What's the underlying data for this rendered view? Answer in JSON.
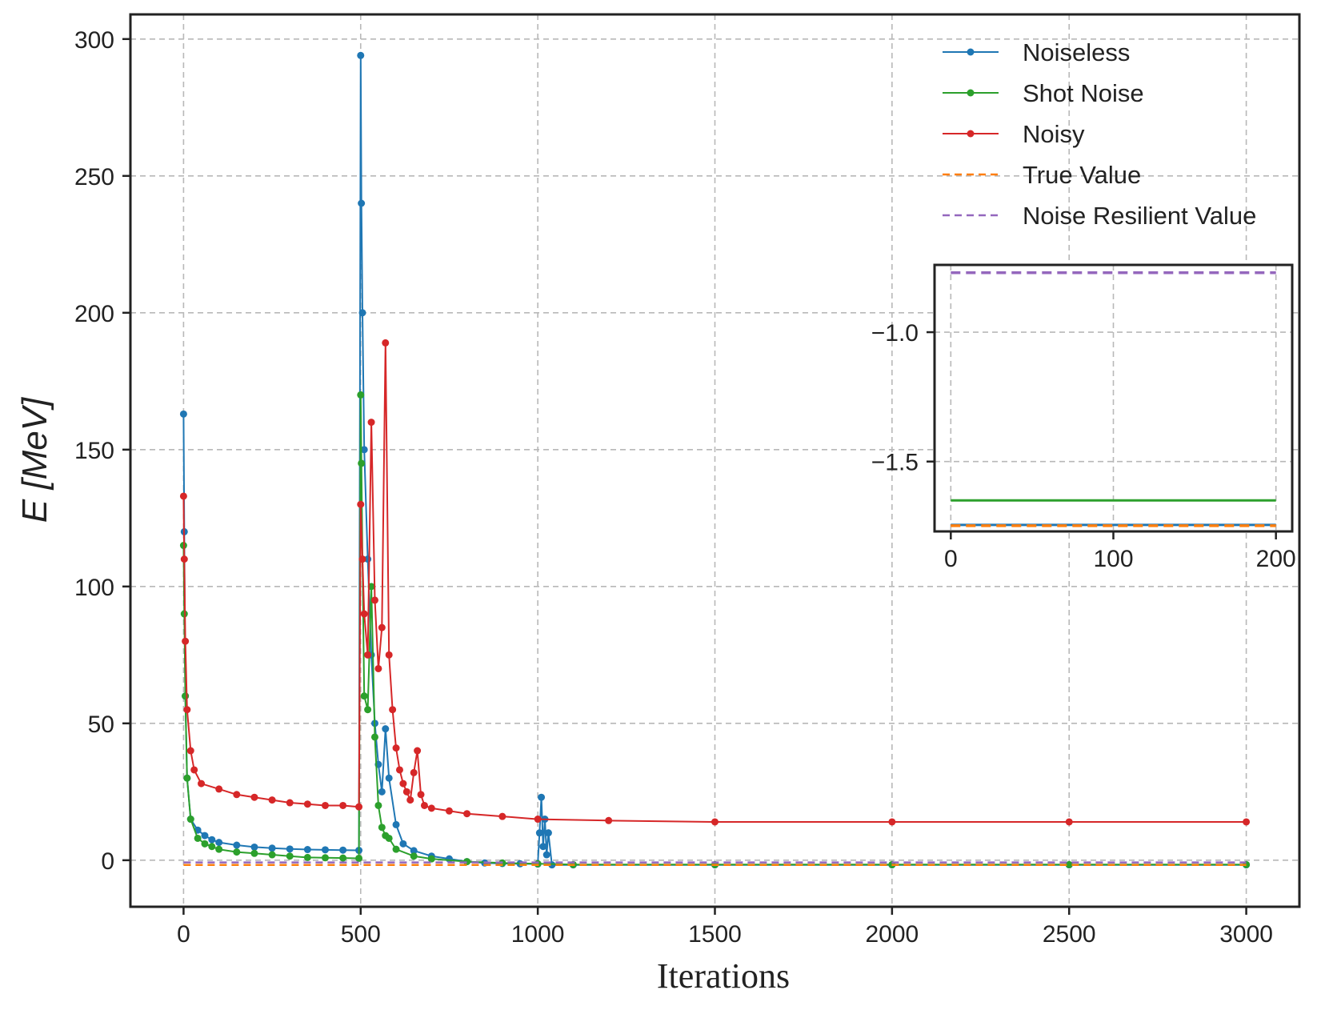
{
  "colors": {
    "noiseless": "#1f77b4",
    "shot_noise": "#2ca02c",
    "noisy": "#d62728",
    "true_value": "#ff7f0e",
    "noise_resilient": "#9467bd",
    "grid": "#b8b8b8",
    "axis": "#222222"
  },
  "chart_data": [
    {
      "id": "main",
      "type": "line",
      "title": "",
      "xlabel": "Iterations",
      "ylabel_symbol": "E",
      "ylabel_unit": "[MeV]",
      "xlim": [
        -150,
        3150
      ],
      "ylim": [
        -17,
        309
      ],
      "xticks": [
        0,
        500,
        1000,
        1500,
        2000,
        2500,
        3000
      ],
      "xtick_labels": [
        "0",
        "500",
        "1000",
        "1500",
        "2000",
        "2500",
        "3000"
      ],
      "yticks": [
        0,
        50,
        100,
        150,
        200,
        250,
        300
      ],
      "ytick_labels": [
        "0",
        "50",
        "100",
        "150",
        "200",
        "250",
        "300"
      ],
      "grid": true,
      "legend_position": "top-right",
      "legend": [
        {
          "key": "noiseless",
          "label": "Noiseless",
          "style": "line-marker"
        },
        {
          "key": "shot_noise",
          "label": "Shot Noise",
          "style": "line-marker"
        },
        {
          "key": "noisy",
          "label": "Noisy",
          "style": "line-marker"
        },
        {
          "key": "true_value",
          "label": "True Value",
          "style": "dashed"
        },
        {
          "key": "noise_resilient",
          "label": "Noise Resilient Value",
          "style": "dashed"
        }
      ],
      "series": [
        {
          "key": "noiseless",
          "name": "Noiseless",
          "x": [
            0,
            2,
            5,
            10,
            20,
            40,
            60,
            80,
            100,
            150,
            200,
            250,
            300,
            350,
            400,
            450,
            495,
            500,
            502,
            505,
            510,
            520,
            530,
            540,
            550,
            560,
            570,
            580,
            600,
            620,
            650,
            700,
            750,
            800,
            850,
            900,
            950,
            1000,
            1005,
            1010,
            1015,
            1020,
            1025,
            1030,
            1040,
            1100,
            1500,
            2000,
            2500,
            3000
          ],
          "y": [
            163,
            120,
            60,
            30,
            15,
            11,
            9,
            7.5,
            6.5,
            5.5,
            4.8,
            4.4,
            4.1,
            3.9,
            3.8,
            3.7,
            3.6,
            294,
            240,
            200,
            150,
            110,
            75,
            50,
            35,
            25,
            48,
            30,
            13,
            6,
            3.5,
            1.5,
            0.5,
            -0.5,
            -1,
            -1.2,
            -1.3,
            -1.4,
            10,
            23,
            5,
            15,
            2,
            10,
            -1.7,
            -1.7,
            -1.7,
            -1.7,
            -1.7,
            -1.7
          ]
        },
        {
          "key": "shot_noise",
          "name": "Shot Noise",
          "x": [
            0,
            2,
            5,
            10,
            20,
            40,
            60,
            80,
            100,
            150,
            200,
            250,
            300,
            350,
            400,
            450,
            495,
            500,
            502,
            505,
            510,
            520,
            530,
            540,
            550,
            560,
            570,
            580,
            600,
            650,
            700,
            800,
            900,
            1000,
            1100,
            1500,
            2000,
            2500,
            3000
          ],
          "y": [
            115,
            90,
            60,
            30,
            15,
            8,
            6,
            5,
            4,
            3,
            2.5,
            2,
            1.5,
            1,
            0.9,
            0.8,
            0.7,
            170,
            145,
            110,
            60,
            55,
            100,
            45,
            20,
            12,
            9,
            8,
            4,
            1.5,
            0.5,
            -0.5,
            -1,
            -1.3,
            -1.6,
            -1.6,
            -1.6,
            -1.6,
            -1.6
          ]
        },
        {
          "key": "noisy",
          "name": "Noisy",
          "x": [
            0,
            2,
            5,
            10,
            20,
            30,
            50,
            100,
            150,
            200,
            250,
            300,
            350,
            400,
            450,
            495,
            500,
            505,
            510,
            520,
            530,
            540,
            550,
            560,
            570,
            580,
            590,
            600,
            610,
            620,
            630,
            640,
            650,
            660,
            670,
            680,
            700,
            750,
            800,
            900,
            1000,
            1200,
            1500,
            2000,
            2500,
            3000
          ],
          "y": [
            133,
            110,
            80,
            55,
            40,
            33,
            28,
            26,
            24,
            23,
            22,
            21,
            20.5,
            20,
            20,
            19.5,
            130,
            110,
            90,
            75,
            160,
            95,
            70,
            85,
            189,
            75,
            55,
            41,
            33,
            28,
            25,
            22,
            32,
            40,
            24,
            20,
            19,
            18,
            17,
            16,
            15,
            14.5,
            14,
            14,
            14,
            14
          ]
        },
        {
          "key": "true_value",
          "name": "True Value",
          "dashed": true,
          "x": [
            0,
            3000
          ],
          "y": [
            -1.75,
            -1.75
          ]
        },
        {
          "key": "noise_resilient",
          "name": "Noise Resilient Value",
          "dashed": true,
          "x": [
            0,
            3000
          ],
          "y": [
            -0.8,
            -0.8
          ]
        }
      ]
    },
    {
      "id": "inset",
      "type": "line",
      "title": "",
      "xlim": [
        -10,
        210
      ],
      "ylim": [
        -1.77,
        -0.74
      ],
      "xticks": [
        0,
        100,
        200
      ],
      "xtick_labels": [
        "0",
        "100",
        "200"
      ],
      "yticks": [
        -1.0,
        -1.5
      ],
      "ytick_labels": [
        "−1.0",
        "−1.5"
      ],
      "grid": true,
      "series": [
        {
          "key": "noiseless",
          "name": "Noiseless",
          "x": [
            0,
            200
          ],
          "y": [
            -1.745,
            -1.745
          ]
        },
        {
          "key": "shot_noise",
          "name": "Shot Noise",
          "x": [
            0,
            200
          ],
          "y": [
            -1.65,
            -1.65
          ]
        },
        {
          "key": "true_value",
          "name": "True Value",
          "dashed": true,
          "x": [
            0,
            200
          ],
          "y": [
            -1.748,
            -1.748
          ]
        },
        {
          "key": "noise_resilient",
          "name": "Noise Resilient Value",
          "dashed": true,
          "x": [
            0,
            200
          ],
          "y": [
            -0.77,
            -0.77
          ]
        }
      ]
    }
  ]
}
